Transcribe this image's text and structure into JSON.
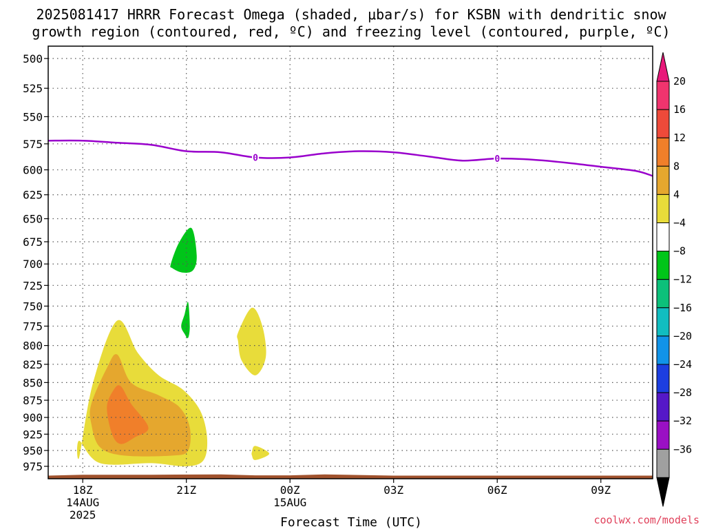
{
  "title": {
    "line1": "2025081417 HRRR Forecast Omega (shaded, μbar/s) for KSBN with dendritic snow",
    "line2": "growth region (contoured, red, ºC) and freezing level (contoured, purple, ºC)"
  },
  "credit": "coolwx.com/models",
  "chart_data": {
    "type": "contour",
    "title": "2025081417 HRRR Forecast Omega (shaded, μbar/s) for KSBN with dendritic snow growth region (contoured, red, ºC) and freezing level (contoured, purple, ºC)",
    "xlabel": "Forecast Time (UTC)",
    "ylabel": "",
    "x_range_hours_from_18Z": [
      -1,
      16.5
    ],
    "x_ticks": [
      {
        "hour": 0,
        "label": "18Z",
        "sub": [
          "14AUG",
          "2025"
        ]
      },
      {
        "hour": 3,
        "label": "21Z",
        "sub": []
      },
      {
        "hour": 6,
        "label": "00Z",
        "sub": [
          "15AUG"
        ]
      },
      {
        "hour": 9,
        "label": "03Z",
        "sub": []
      },
      {
        "hour": 12,
        "label": "06Z",
        "sub": []
      },
      {
        "hour": 15,
        "label": "09Z",
        "sub": []
      }
    ],
    "y_axis": {
      "scale": "pressure_hPa",
      "reversed": true,
      "range": [
        490,
        995
      ]
    },
    "y_ticks": [
      500,
      525,
      550,
      575,
      600,
      625,
      650,
      675,
      700,
      725,
      750,
      775,
      800,
      825,
      850,
      875,
      900,
      925,
      950,
      975
    ],
    "grid": true,
    "colorbar": {
      "levels": [
        "20",
        "16",
        "12",
        "8",
        "4",
        "−4",
        "−8",
        "−12",
        "−16",
        "−20",
        "−24",
        "−28",
        "−32",
        "−36"
      ],
      "colors": [
        "#f0346e",
        "#ee4a3a",
        "#f07f2a",
        "#e5a72e",
        "#e8dc3a",
        "#ffffff",
        "#00c519",
        "#0cc07a",
        "#11bdc0",
        "#1193e8",
        "#1c3ee0",
        "#5518c8",
        "#9a10c4",
        "#a0a0a0"
      ],
      "top_arrow_color": "#e8197a",
      "bottom_arrow_color": "#000000"
    },
    "freezing_level": {
      "color": "#9900cc",
      "label": "0",
      "points": [
        [
          -1,
          572
        ],
        [
          0,
          572
        ],
        [
          1,
          574
        ],
        [
          2,
          576
        ],
        [
          3,
          582
        ],
        [
          4,
          583
        ],
        [
          5,
          588
        ],
        [
          6,
          588
        ],
        [
          7,
          584
        ],
        [
          8,
          582
        ],
        [
          9,
          583
        ],
        [
          10,
          587
        ],
        [
          11,
          591
        ],
        [
          12,
          589
        ],
        [
          13,
          590
        ],
        [
          14,
          593
        ],
        [
          15,
          597
        ],
        [
          16,
          601
        ],
        [
          16.5,
          606
        ]
      ],
      "label_hours": [
        5,
        12
      ]
    },
    "omega_regions": [
      {
        "range": "4 to 8",
        "color": "#e8dc3a",
        "points": [
          [
            -0.1,
            960
          ],
          [
            0.3,
            850
          ],
          [
            1,
            768
          ],
          [
            1.6,
            810
          ],
          [
            2.2,
            840
          ],
          [
            2.9,
            860
          ],
          [
            3.4,
            890
          ],
          [
            3.6,
            930
          ],
          [
            3.5,
            965
          ],
          [
            3,
            975
          ],
          [
            2,
            970
          ],
          [
            0.5,
            970
          ],
          [
            -0.1,
            935
          ]
        ]
      },
      {
        "range": "8 to 12",
        "color": "#e5a72e",
        "points": [
          [
            0.25,
            880
          ],
          [
            0.7,
            830
          ],
          [
            1,
            812
          ],
          [
            1.4,
            850
          ],
          [
            2.2,
            868
          ],
          [
            2.8,
            885
          ],
          [
            3.1,
            915
          ],
          [
            3.05,
            950
          ],
          [
            2.6,
            958
          ],
          [
            1.2,
            958
          ],
          [
            0.5,
            945
          ],
          [
            0.25,
            910
          ]
        ]
      },
      {
        "range": "12 to 16",
        "color": "#f07f2a",
        "points": [
          [
            0.7,
            885
          ],
          [
            0.9,
            860
          ],
          [
            1.1,
            855
          ],
          [
            1.4,
            880
          ],
          [
            1.9,
            915
          ],
          [
            1.5,
            930
          ],
          [
            1.1,
            940
          ],
          [
            0.85,
            925
          ]
        ]
      },
      {
        "range": "4 to 8",
        "color": "#e8dc3a",
        "points": [
          [
            4.5,
            783
          ],
          [
            4.9,
            752
          ],
          [
            5.2,
            775
          ],
          [
            5.3,
            815
          ],
          [
            5,
            840
          ],
          [
            4.6,
            820
          ],
          [
            4.5,
            795
          ]
        ]
      },
      {
        "range": "4 to 8",
        "color": "#e8dc3a",
        "points": [
          [
            4.9,
            952
          ],
          [
            5,
            943
          ],
          [
            5.4,
            955
          ],
          [
            5,
            965
          ],
          [
            4.9,
            958
          ]
        ]
      },
      {
        "range": "-8 to -4",
        "color": "#00c519",
        "points": [
          [
            2.55,
            700
          ],
          [
            2.8,
            675
          ],
          [
            3.15,
            660
          ],
          [
            3.3,
            690
          ],
          [
            3.2,
            707
          ],
          [
            2.9,
            710
          ],
          [
            2.6,
            705
          ]
        ]
      },
      {
        "range": "-8 to -4",
        "color": "#00c519",
        "points": [
          [
            2.85,
            775
          ],
          [
            2.95,
            760
          ],
          [
            3.05,
            745
          ],
          [
            3.1,
            775
          ],
          [
            3.05,
            790
          ],
          [
            2.95,
            785
          ]
        ]
      }
    ],
    "terrain": {
      "color": "#a0522d",
      "points": [
        [
          -1,
          990
        ],
        [
          0,
          988.5
        ],
        [
          2,
          988.5
        ],
        [
          4,
          988
        ],
        [
          5,
          989.5
        ],
        [
          6,
          989.5
        ],
        [
          7,
          988
        ],
        [
          8,
          989
        ],
        [
          9,
          990
        ],
        [
          16.5,
          990
        ]
      ]
    }
  }
}
